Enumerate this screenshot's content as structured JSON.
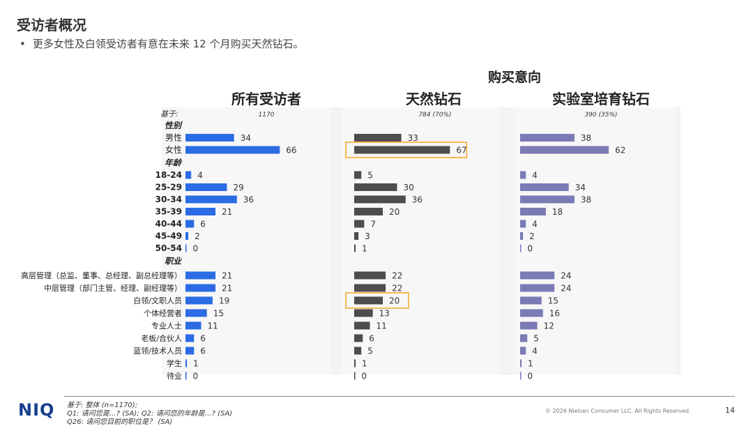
{
  "header": {
    "title": "受访者概况",
    "bullet": "更多女性及白领受访者有意在未来 12 个月购买天然钻石。"
  },
  "chart_data": {
    "type": "bar",
    "group_title": "购买意向",
    "base_label": "基于:",
    "columns": [
      {
        "name": "所有受访者",
        "base": "1170",
        "color": "#2b6be4"
      },
      {
        "name": "天然钻石",
        "base": "784 (70%)",
        "color": "#4d4d4d"
      },
      {
        "name": "实验室培育钻石",
        "base": "390 (35%)",
        "color": "#7a7ab5"
      }
    ],
    "sections": [
      {
        "label": "性别",
        "rows": [
          {
            "label": "男性",
            "values": [
              34,
              33,
              38
            ]
          },
          {
            "label": "女性",
            "values": [
              66,
              67,
              62
            ]
          }
        ]
      },
      {
        "label": "年龄",
        "rows": [
          {
            "label": "18-24",
            "values": [
              4,
              5,
              4
            ]
          },
          {
            "label": "25-29",
            "values": [
              29,
              30,
              34
            ]
          },
          {
            "label": "30-34",
            "values": [
              36,
              36,
              38
            ]
          },
          {
            "label": "35-39",
            "values": [
              21,
              20,
              18
            ]
          },
          {
            "label": "40-44",
            "values": [
              6,
              7,
              4
            ]
          },
          {
            "label": "45-49",
            "values": [
              2,
              3,
              2
            ]
          },
          {
            "label": "50-54",
            "values": [
              0,
              1,
              0
            ]
          }
        ]
      },
      {
        "label": "职业",
        "rows": [
          {
            "label": "高层管理（总监、董事、总经理、副总经理等）",
            "values": [
              21,
              22,
              24
            ]
          },
          {
            "label": "中层管理（部门主管、经理、副经理等）",
            "values": [
              21,
              22,
              24
            ]
          },
          {
            "label": "白领/文职人员",
            "values": [
              19,
              20,
              15
            ]
          },
          {
            "label": "个体经营者",
            "values": [
              15,
              13,
              16
            ]
          },
          {
            "label": "专业人士",
            "values": [
              11,
              11,
              12
            ]
          },
          {
            "label": "老板/合伙人",
            "values": [
              6,
              6,
              5
            ]
          },
          {
            "label": "蓝领/技术人员",
            "values": [
              6,
              5,
              4
            ]
          },
          {
            "label": "学生",
            "values": [
              1,
              1,
              1
            ]
          },
          {
            "label": "待业",
            "values": [
              0,
              0,
              0
            ]
          }
        ]
      }
    ],
    "highlights": [
      {
        "row": "女性",
        "column": "天然钻石"
      },
      {
        "row": "白领/文职人员",
        "column": "天然钻石"
      }
    ],
    "highlight_color": "#f5a623"
  },
  "footer": {
    "logo": "NIQ",
    "notes": [
      "基于: 整体 (n=1170);",
      "Q1: 请问您是…? (SA); Q2: 请问您的年龄是…? (SA)",
      "Q26: 请问您目前的职位是？ (SA)"
    ],
    "copyright": "© 2026 Nielsen Consumer LLC. All Rights Reserved.",
    "page_number": "14"
  }
}
